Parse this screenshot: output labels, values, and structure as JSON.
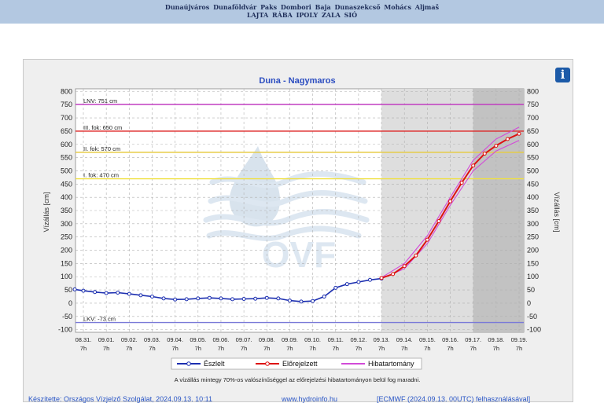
{
  "topnav": {
    "row1": [
      "Dunaújváros",
      "Dunaföldvár",
      "Paks",
      "Dombori",
      "Baja",
      "Dunaszekcső",
      "Mohács",
      "Aljmaš"
    ],
    "row2": [
      "LAJTA",
      "RÁBA",
      "IPOLY",
      "ZALA",
      "SIÓ"
    ]
  },
  "info_icon": "info-icon",
  "chart_data": {
    "type": "line",
    "title": "Duna - Nagymaros",
    "ylabel_left": "Vízállás [cm]",
    "ylabel_right": "Vízállás [cm]",
    "ylim": [
      -110,
      810
    ],
    "yticks": [
      -100,
      -50,
      0,
      50,
      100,
      150,
      200,
      250,
      300,
      350,
      400,
      450,
      500,
      550,
      600,
      650,
      700,
      750,
      800
    ],
    "x_range_days": [
      "08.31.",
      "09.19."
    ],
    "xtick_dates": [
      "08.31.",
      "09.01.",
      "09.02.",
      "09.03.",
      "09.04.",
      "09.05.",
      "09.06.",
      "09.07.",
      "09.08.",
      "09.09.",
      "09.10.",
      "09.11.",
      "09.12.",
      "09.13.",
      "09.14.",
      "09.15.",
      "09.16.",
      "09.17.",
      "09.18.",
      "09.19."
    ],
    "xtick_time": "7h",
    "grid": true,
    "forecast_zone_start": "09.13.",
    "uncertain_zone_start": "09.17.",
    "reference_lines": [
      {
        "label": "LNV: 751 cm",
        "value": 751,
        "color": "#c03cc0"
      },
      {
        "label": "III. fok: 650 cm",
        "value": 650,
        "color": "#dd2222"
      },
      {
        "label": "II. fok: 570 cm",
        "value": 570,
        "color": "#e6cc44"
      },
      {
        "label": "I. fok: 470 cm",
        "value": 470,
        "color": "#f0e040"
      },
      {
        "label": "LKV: -73 cm",
        "value": -73,
        "color": "#7a7ad8"
      }
    ],
    "series": [
      {
        "name": "Észlelt",
        "color": "#1c2fb0",
        "x": [
          "08.30. 22h",
          "08.31. 7h",
          "08.31. 19h",
          "09.01. 7h",
          "09.01. 19h",
          "09.02. 7h",
          "09.02. 19h",
          "09.03. 7h",
          "09.03. 19h",
          "09.04. 7h",
          "09.04. 19h",
          "09.05. 7h",
          "09.05. 19h",
          "09.06. 7h",
          "09.06. 19h",
          "09.07. 7h",
          "09.07. 19h",
          "09.08. 7h",
          "09.08. 19h",
          "09.09. 7h",
          "09.09. 19h",
          "09.10. 7h",
          "09.10. 19h",
          "09.11. 7h",
          "09.11. 19h",
          "09.12. 7h",
          "09.12. 19h",
          "09.13. 7h"
        ],
        "values": [
          52,
          47,
          42,
          38,
          40,
          35,
          30,
          25,
          18,
          14,
          15,
          18,
          20,
          18,
          15,
          16,
          17,
          20,
          18,
          10,
          6,
          8,
          25,
          58,
          72,
          80,
          88,
          93
        ]
      },
      {
        "name": "Előrejelzett",
        "color": "#dd1111",
        "x": [
          "09.13. 7h",
          "09.13. 19h",
          "09.14. 7h",
          "09.14. 19h",
          "09.15. 7h",
          "09.15. 19h",
          "09.16. 7h",
          "09.16. 19h",
          "09.17. 7h",
          "09.17. 19h",
          "09.18. 7h",
          "09.18. 19h",
          "09.19. 7h"
        ],
        "values": [
          95,
          110,
          140,
          180,
          240,
          310,
          385,
          455,
          520,
          565,
          595,
          620,
          640
        ]
      },
      {
        "name": "Hibatartomány",
        "color": "#d24bd8",
        "upper": {
          "x": [
            "09.13. 7h",
            "09.14. 7h",
            "09.15. 7h",
            "09.16. 7h",
            "09.17. 7h",
            "09.18. 7h",
            "09.19. 7h"
          ],
          "values": [
            97,
            150,
            255,
            400,
            540,
            620,
            665
          ]
        },
        "lower": {
          "x": [
            "09.13. 7h",
            "09.14. 7h",
            "09.15. 7h",
            "09.16. 7h",
            "09.17. 7h",
            "09.18. 7h",
            "09.19. 7h"
          ],
          "values": [
            93,
            130,
            225,
            370,
            500,
            575,
            615
          ]
        }
      }
    ],
    "footnote": "A vízállás mintegy 70%-os valószínűséggel az előrejelzési hibatartományon belül fog maradni.",
    "watermark": "OVF"
  },
  "credits": {
    "made_by": "Készítette: Országos Vízjelző Szolgálat, 2024.09.13. 10:11",
    "website": "www.hydroinfo.hu",
    "model": "[ECMWF (2024.09.13. 00UTC) felhasználásával]"
  }
}
